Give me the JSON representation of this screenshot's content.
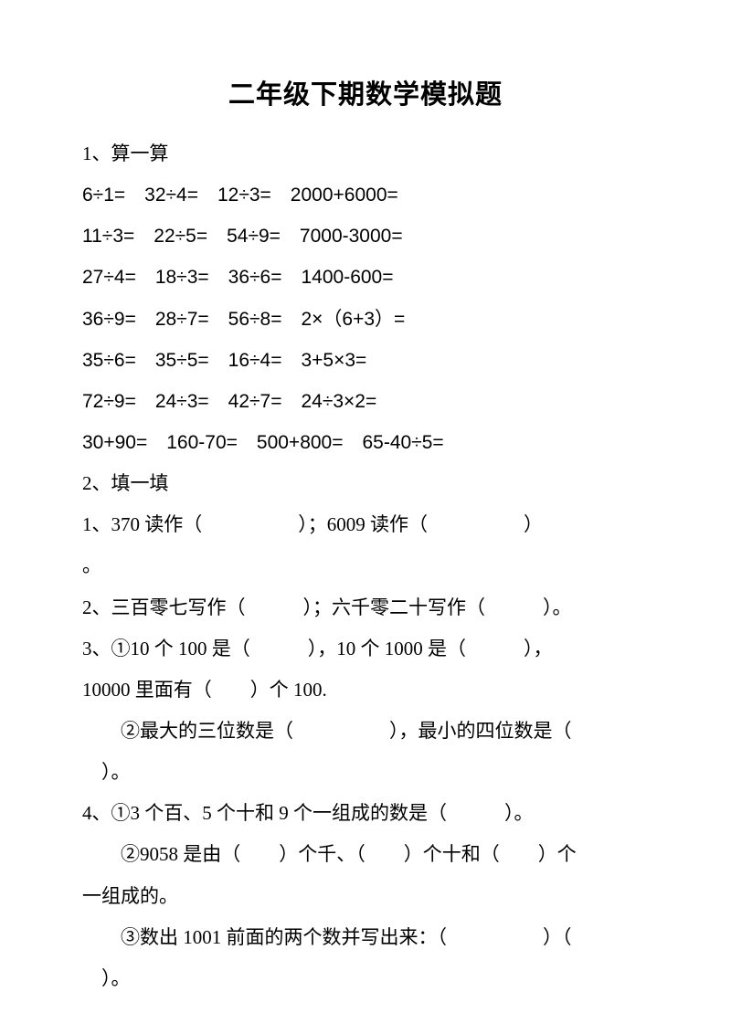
{
  "title": "二年级下期数学模拟题",
  "section1": {
    "header": "1、算一算",
    "rows": [
      "6÷1=　32÷4=　12÷3=　2000+6000=",
      "11÷3=　22÷5=　54÷9=　7000-3000=",
      "27÷4=　18÷3=　36÷6=　1400-600=",
      "36÷9=　28÷7=　56÷8=　2×（6+3）=",
      "35÷6=　35÷5=　16÷4=　3+5×3=",
      "72÷9=　24÷3=　42÷7=　24÷3×2=",
      "30+90=　160-70=　500+800=　65-40÷5="
    ]
  },
  "section2": {
    "header": "2、填一填",
    "lines": [
      {
        "text": "1、370 读作（　　　　　）；6009 读作（　　　　　）",
        "indent": false
      },
      {
        "text": "。",
        "indent": false
      },
      {
        "text": "2、三百零七写作（　　　）；六千零二十写作（　　　）。",
        "indent": false
      },
      {
        "text": "3、①10 个 100 是（　　　），10 个 1000 是（　　　），",
        "indent": false
      },
      {
        "text": "10000 里面有（　　）个 100.",
        "indent": false
      },
      {
        "text": "②最大的三位数是（　　　　　），最小的四位数是（",
        "indent": true
      },
      {
        "text": "　）。",
        "indent": false
      },
      {
        "text": "4、①3 个百、5 个十和 9 个一组成的数是（　　　）。",
        "indent": false
      },
      {
        "text": "②9058 是由（　　）个千、（　　）个十和（　　）个",
        "indent": true
      },
      {
        "text": "一组成的。",
        "indent": false
      },
      {
        "text": "③数出 1001 前面的两个数并写出来：（　　　　　）（",
        "indent": true
      },
      {
        "text": "　）。",
        "indent": false
      }
    ]
  }
}
